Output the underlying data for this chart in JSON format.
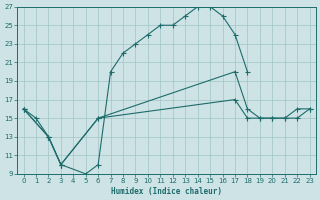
{
  "xlabel": "Humidex (Indice chaleur)",
  "background_color": "#cde3e5",
  "grid_color": "#a0c4c6",
  "line_color": "#1e6b6b",
  "xlim": [
    -0.5,
    23.5
  ],
  "ylim": [
    9,
    27
  ],
  "xticks": [
    0,
    1,
    2,
    3,
    4,
    5,
    6,
    7,
    8,
    9,
    10,
    11,
    12,
    13,
    14,
    15,
    16,
    17,
    18,
    19,
    20,
    21,
    22,
    23
  ],
  "yticks": [
    9,
    11,
    13,
    15,
    17,
    19,
    21,
    23,
    25,
    27
  ],
  "line1_x": [
    0,
    1,
    2,
    3,
    5,
    6,
    7,
    8,
    9,
    10,
    11,
    12,
    13,
    14,
    15,
    16,
    17,
    18
  ],
  "line1_y": [
    16,
    15,
    13,
    10,
    9,
    10,
    20,
    22,
    23,
    24,
    25,
    25,
    26,
    27,
    27,
    26,
    24,
    20
  ],
  "line2_x": [
    0,
    2,
    3,
    6,
    17,
    18,
    19,
    20,
    21,
    22,
    23
  ],
  "line2_y": [
    16,
    13,
    10,
    15,
    20,
    16,
    15,
    15,
    15,
    16,
    16
  ],
  "line3_x": [
    0,
    2,
    3,
    6,
    17,
    18,
    19,
    20,
    21,
    22,
    23
  ],
  "line3_y": [
    16,
    13,
    10,
    15,
    17,
    15,
    15,
    15,
    15,
    15,
    16
  ]
}
